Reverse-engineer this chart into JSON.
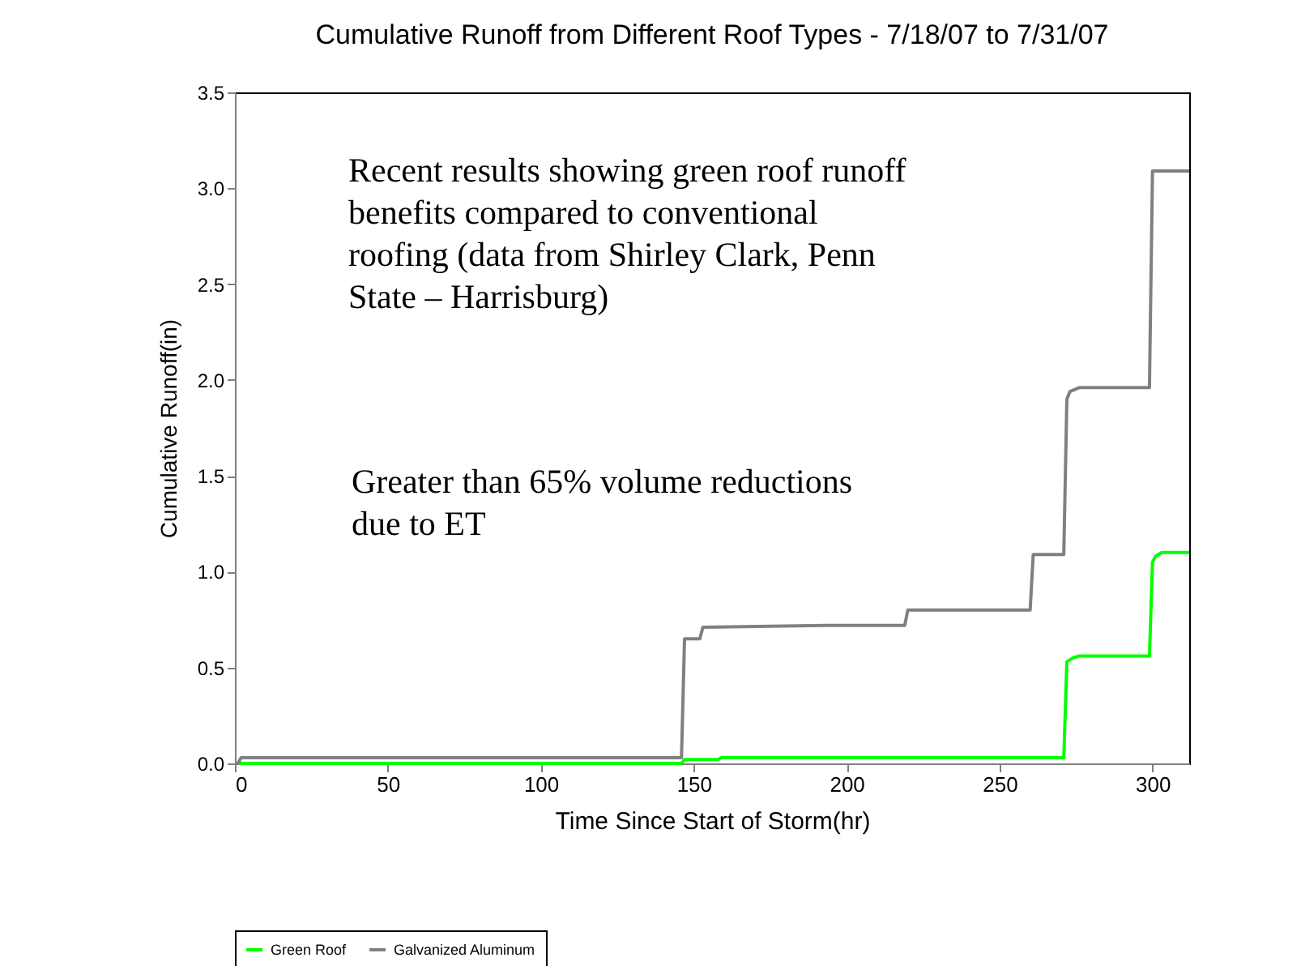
{
  "chart_data": {
    "type": "line",
    "title": "Cumulative Runoff from Different Roof Types - 7/18/07 to 7/31/07",
    "xlabel": "Time Since Start of Storm(hr)",
    "ylabel": "Cumulative Runoff(in)",
    "series": [
      {
        "name": "Green Roof",
        "color": "#00ff00",
        "x": [
          0,
          146,
          147,
          158,
          159,
          271,
          272,
          274,
          276,
          299,
          300,
          301,
          303,
          312
        ],
        "values": [
          0,
          0,
          0.02,
          0.02,
          0.03,
          0.03,
          0.53,
          0.55,
          0.56,
          0.56,
          1.05,
          1.08,
          1.1,
          1.1
        ]
      },
      {
        "name": "Galvanized Aluminum",
        "color": "#808080",
        "x": [
          0,
          1,
          2,
          146,
          147,
          152,
          153,
          195,
          219,
          220,
          260,
          261,
          271,
          272,
          273,
          276,
          299,
          300,
          312
        ],
        "values": [
          0,
          0,
          0.03,
          0.03,
          0.65,
          0.65,
          0.71,
          0.72,
          0.72,
          0.8,
          0.8,
          1.09,
          1.09,
          1.9,
          1.94,
          1.96,
          1.96,
          3.09,
          3.09
        ]
      }
    ],
    "xlim": [
      0,
      312
    ],
    "ylim": [
      0,
      3.5
    ],
    "xticks": [
      0,
      50,
      100,
      150,
      200,
      250,
      300
    ],
    "yticks": [
      {
        "value": 0,
        "label": "0.0"
      },
      {
        "value": 0.5,
        "label": "0.5"
      },
      {
        "value": 1,
        "label": "1.0"
      },
      {
        "value": 1.5,
        "label": "1.5"
      },
      {
        "value": 2,
        "label": "2.0"
      },
      {
        "value": 2.5,
        "label": "2.5"
      },
      {
        "value": 3,
        "label": "3.0"
      },
      {
        "value": 3.5,
        "label": "3.5"
      }
    ],
    "annotations": [
      "Recent results showing green roof runoff\nbenefits compared to conventional\nroofing (data from Shirley Clark, Penn\nState – Harrisburg)",
      "Greater than 65% volume reductions\ndue to ET"
    ],
    "grid": false,
    "legend": "bottom",
    "marker": "none",
    "line_style": "solid"
  }
}
